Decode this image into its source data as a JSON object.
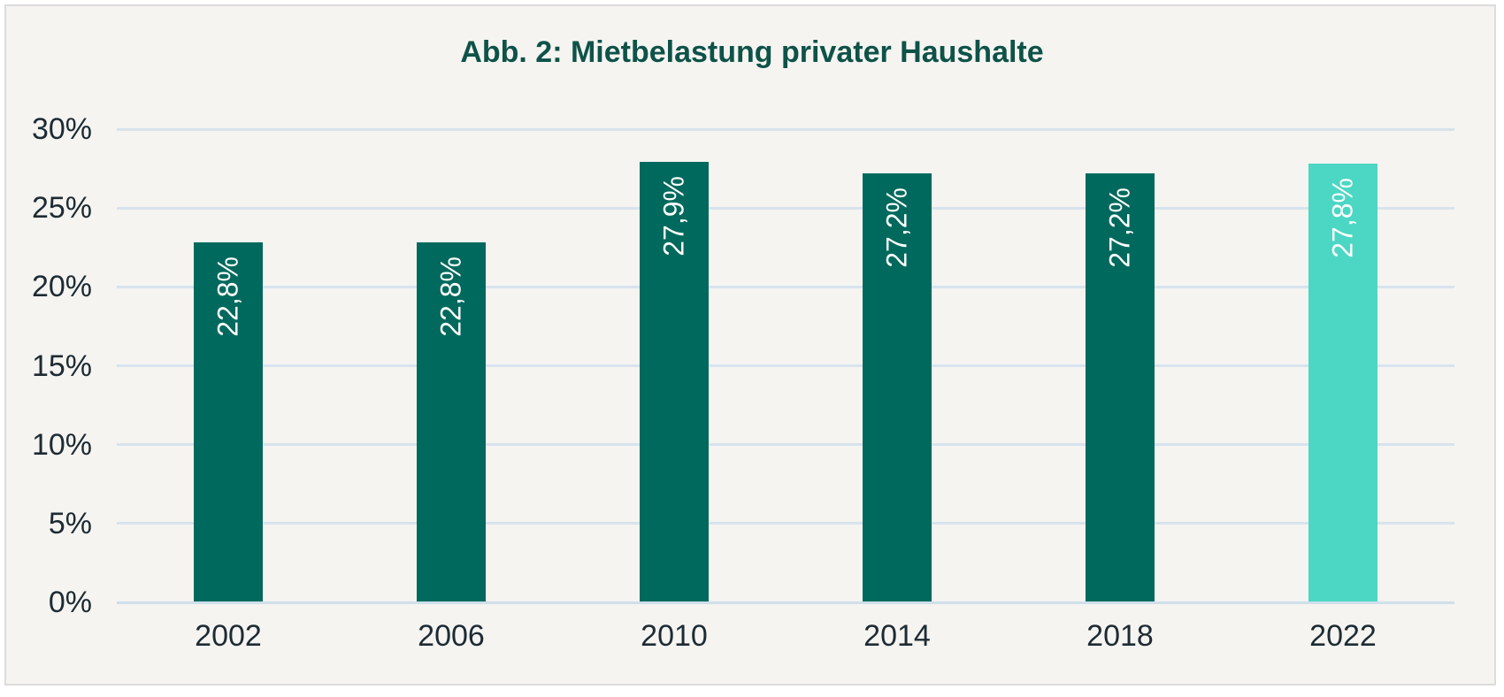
{
  "title": "Abb. 2: Mietbelastung privater Haushalte",
  "colors": {
    "background": "#f5f4f1",
    "frame_border": "#dcdcdc",
    "title_text": "#0e5248",
    "bar": "#00695d",
    "bar_highlight": "#4bd7c3",
    "gridline": "#d8e3ed",
    "axis_text": "#1d2b33",
    "bar_label_text": "#ffffff"
  },
  "chart_data": {
    "type": "bar",
    "title": "Abb. 2: Mietbelastung privater Haushalte",
    "categories": [
      "2002",
      "2006",
      "2010",
      "2014",
      "2018",
      "2022"
    ],
    "values": [
      22.8,
      22.8,
      27.9,
      27.2,
      27.2,
      27.8
    ],
    "value_labels": [
      "22,8%",
      "22,8%",
      "27,9%",
      "27,2%",
      "27,2%",
      "27,8%"
    ],
    "highlight_index": 5,
    "xlabel": "",
    "ylabel": "",
    "ylim": [
      0,
      30
    ],
    "ytick_values": [
      30,
      25,
      20,
      15,
      10,
      5,
      0
    ],
    "ytick_labels": [
      "30%",
      "25%",
      "20%",
      "15%",
      "10%",
      "5%",
      "0%"
    ],
    "grid": true,
    "legend": "none",
    "value_label_orientation": "vertical"
  }
}
